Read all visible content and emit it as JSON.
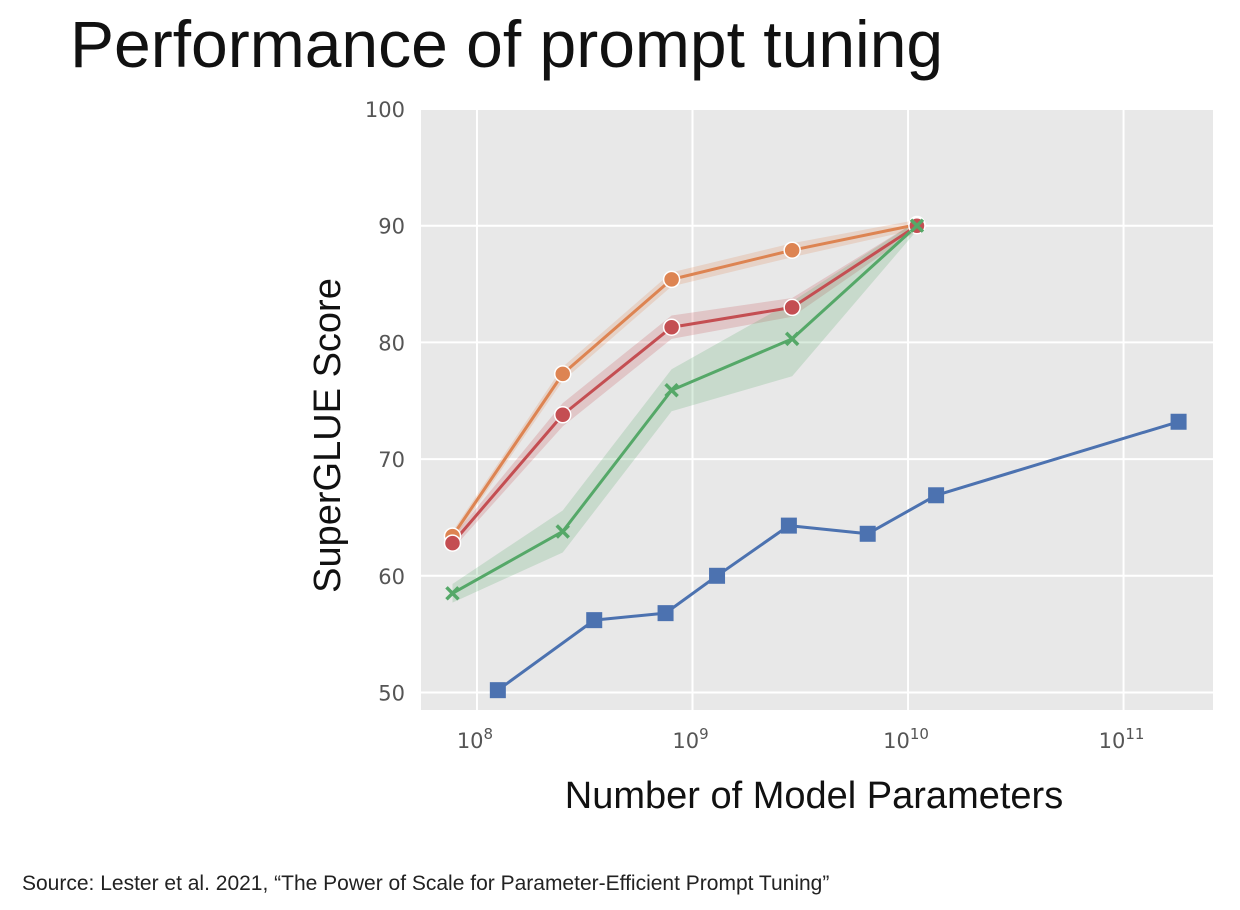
{
  "title": "Performance of prompt tuning",
  "source": "Source:  Lester et al. 2021, “The Power of Scale for Parameter-Efficient Prompt Tuning”",
  "chart_data": {
    "type": "line",
    "xlabel": "Number of Model Parameters",
    "ylabel": "SuperGLUE Score",
    "xscale": "log",
    "xlim": [
      55000000.0,
      260000000000.0
    ],
    "ylim": [
      48.5,
      100
    ],
    "xticks": [
      {
        "value": 100000000.0,
        "base": "10",
        "exp": "8"
      },
      {
        "value": 1000000000.0,
        "base": "10",
        "exp": "9"
      },
      {
        "value": 10000000000.0,
        "base": "10",
        "exp": "10"
      },
      {
        "value": 100000000000.0,
        "base": "10",
        "exp": "11"
      }
    ],
    "yticks": [
      50,
      60,
      70,
      80,
      90,
      100
    ],
    "grid": true,
    "background": "#e8e8e8",
    "series": [
      {
        "color": "#dd8452",
        "marker": "circle",
        "x": [
          77000000.0,
          250000000.0,
          800000000.0,
          2900000000.0,
          11000000000.0
        ],
        "y": [
          63.4,
          77.3,
          85.4,
          87.9,
          90.1
        ],
        "band": [
          0.4,
          0.6,
          0.6,
          0.6,
          0.4
        ]
      },
      {
        "color": "#c44e52",
        "marker": "circle",
        "x": [
          77000000.0,
          250000000.0,
          800000000.0,
          2900000000.0,
          11000000000.0
        ],
        "y": [
          62.8,
          73.8,
          81.3,
          83.0,
          90.0
        ],
        "band": [
          0.5,
          1.0,
          1.0,
          0.8,
          0.4
        ]
      },
      {
        "color": "#55a868",
        "marker": "x",
        "x": [
          77000000.0,
          250000000.0,
          800000000.0,
          2900000000.0,
          11000000000.0
        ],
        "y": [
          58.5,
          63.8,
          75.9,
          80.3,
          90.0
        ],
        "band": [
          0.8,
          1.8,
          1.8,
          3.2,
          0.4
        ]
      },
      {
        "color": "#4c72b0",
        "marker": "square",
        "x": [
          125000000.0,
          350000000.0,
          750000000.0,
          1300000000.0,
          2800000000.0,
          6500000000.0,
          13500000000.0,
          180000000000.0
        ],
        "y": [
          50.2,
          56.2,
          56.8,
          60.0,
          64.3,
          63.6,
          66.9,
          73.2
        ],
        "band": null
      }
    ]
  }
}
